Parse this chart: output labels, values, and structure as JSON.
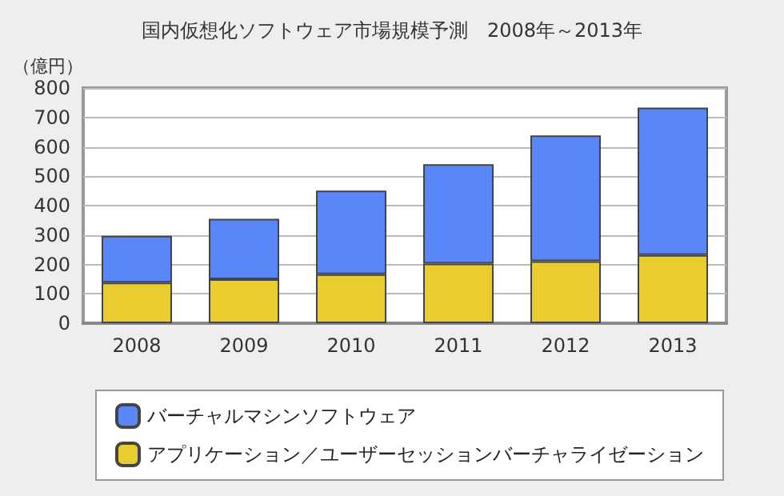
{
  "chart_data": {
    "type": "bar",
    "title": "国内仮想化ソフトウェア市場規模予測　2008年～2013年",
    "ylabel": "（億円）",
    "categories": [
      "2008",
      "2009",
      "2010",
      "2011",
      "2012",
      "2013"
    ],
    "stacked": true,
    "series": [
      {
        "name": "アプリケーション／ユーザーセッションバーチャライゼーション",
        "color": "#e8cc30",
        "values": [
          138,
          150,
          167,
          203,
          211,
          232
        ]
      },
      {
        "name": "バーチャルマシンソフトウェア",
        "color": "#5a86f8",
        "values": [
          159,
          205,
          284,
          338,
          428,
          501
        ]
      }
    ],
    "ylim": [
      0,
      800
    ],
    "yticks": [
      0,
      100,
      200,
      300,
      400,
      500,
      600,
      700,
      800
    ],
    "grid": "y",
    "legend": "bottom"
  }
}
